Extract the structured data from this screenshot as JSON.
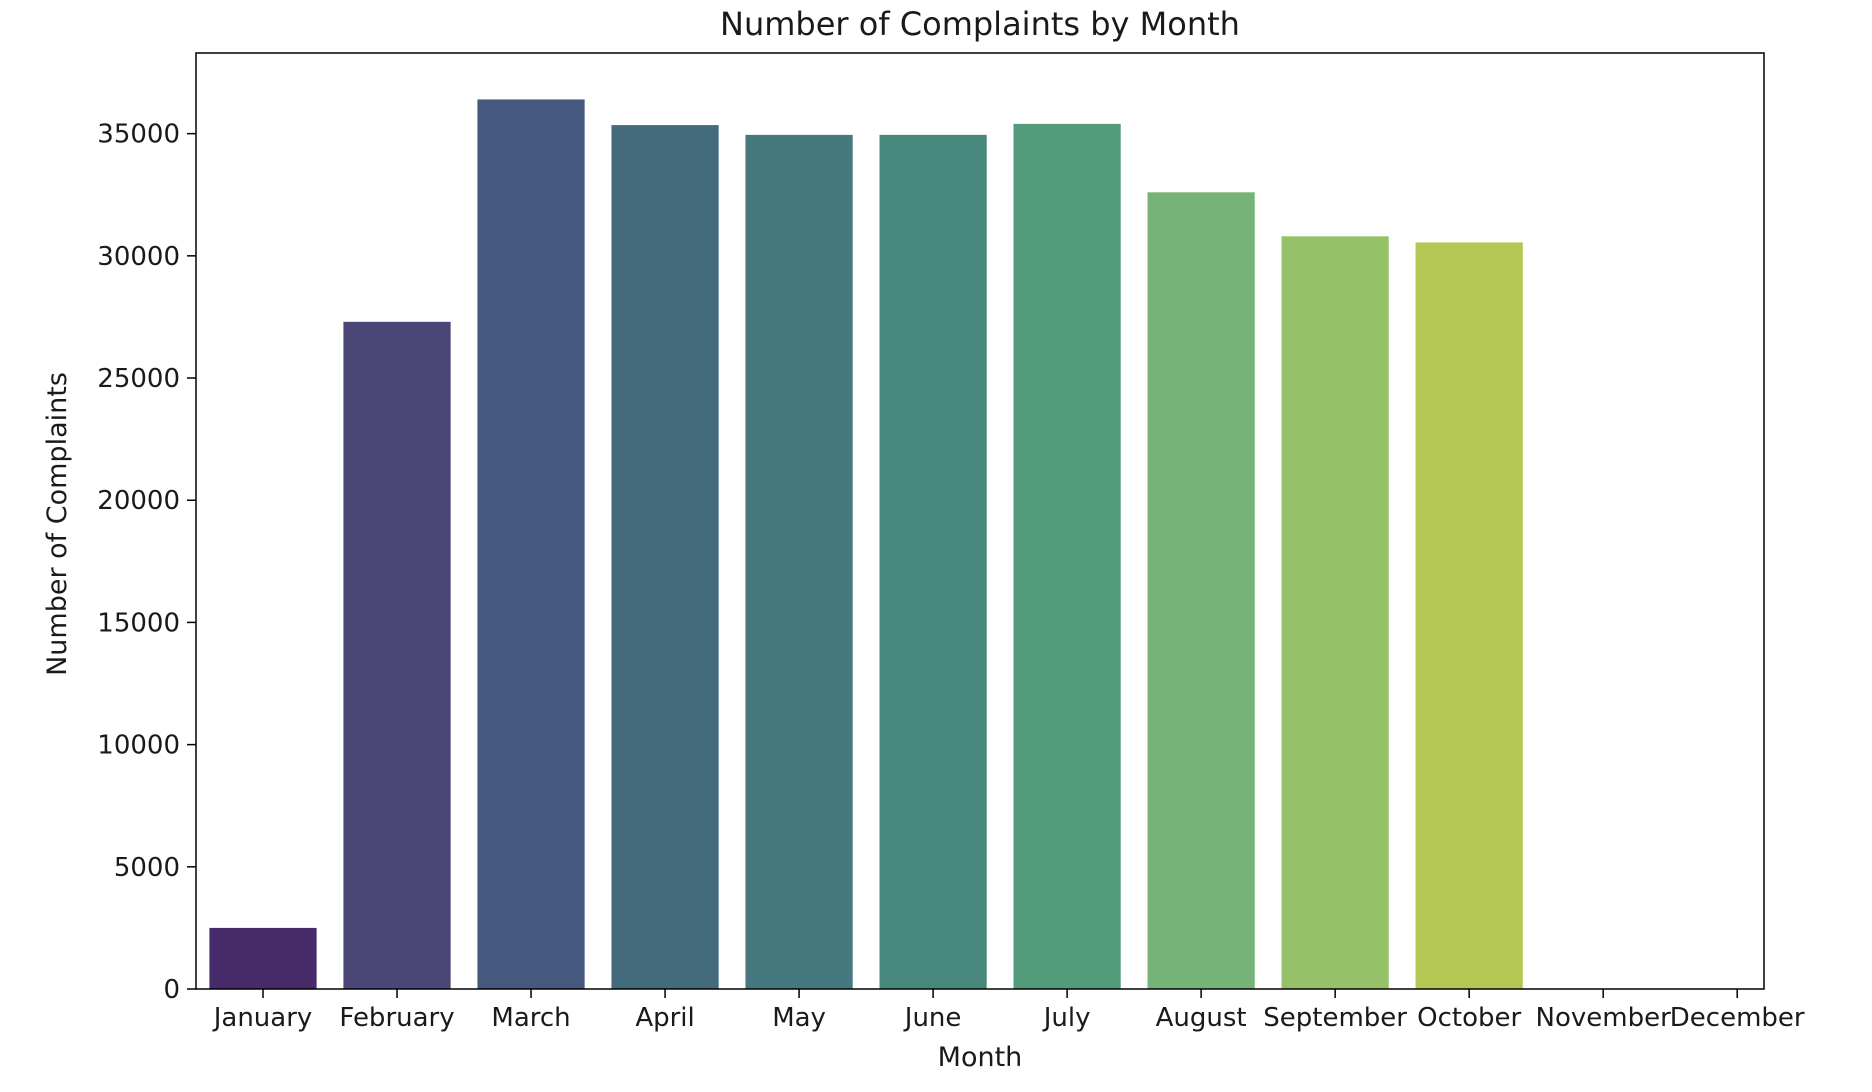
{
  "chart_data": {
    "type": "bar",
    "title": "Number of Complaints by Month",
    "xlabel": "Month",
    "ylabel": "Number of Complaints",
    "categories": [
      "January",
      "February",
      "March",
      "April",
      "May",
      "June",
      "July",
      "August",
      "September",
      "October",
      "November",
      "December"
    ],
    "values": [
      2500,
      27300,
      36400,
      35350,
      34950,
      34950,
      35400,
      32600,
      30800,
      30550,
      0,
      0
    ],
    "ylim": [
      0,
      38300
    ],
    "yticks": [
      0,
      5000,
      10000,
      15000,
      20000,
      25000,
      30000,
      35000
    ],
    "grid": false,
    "legend": "none",
    "colors": [
      "#472a6a",
      "#4a4777",
      "#45597f",
      "#446b7c",
      "#46797e",
      "#48887c",
      "#549b7c",
      "#76b378",
      "#95c268",
      "#b5c753",
      "#c9cc3f",
      "#dcd13a"
    ]
  }
}
